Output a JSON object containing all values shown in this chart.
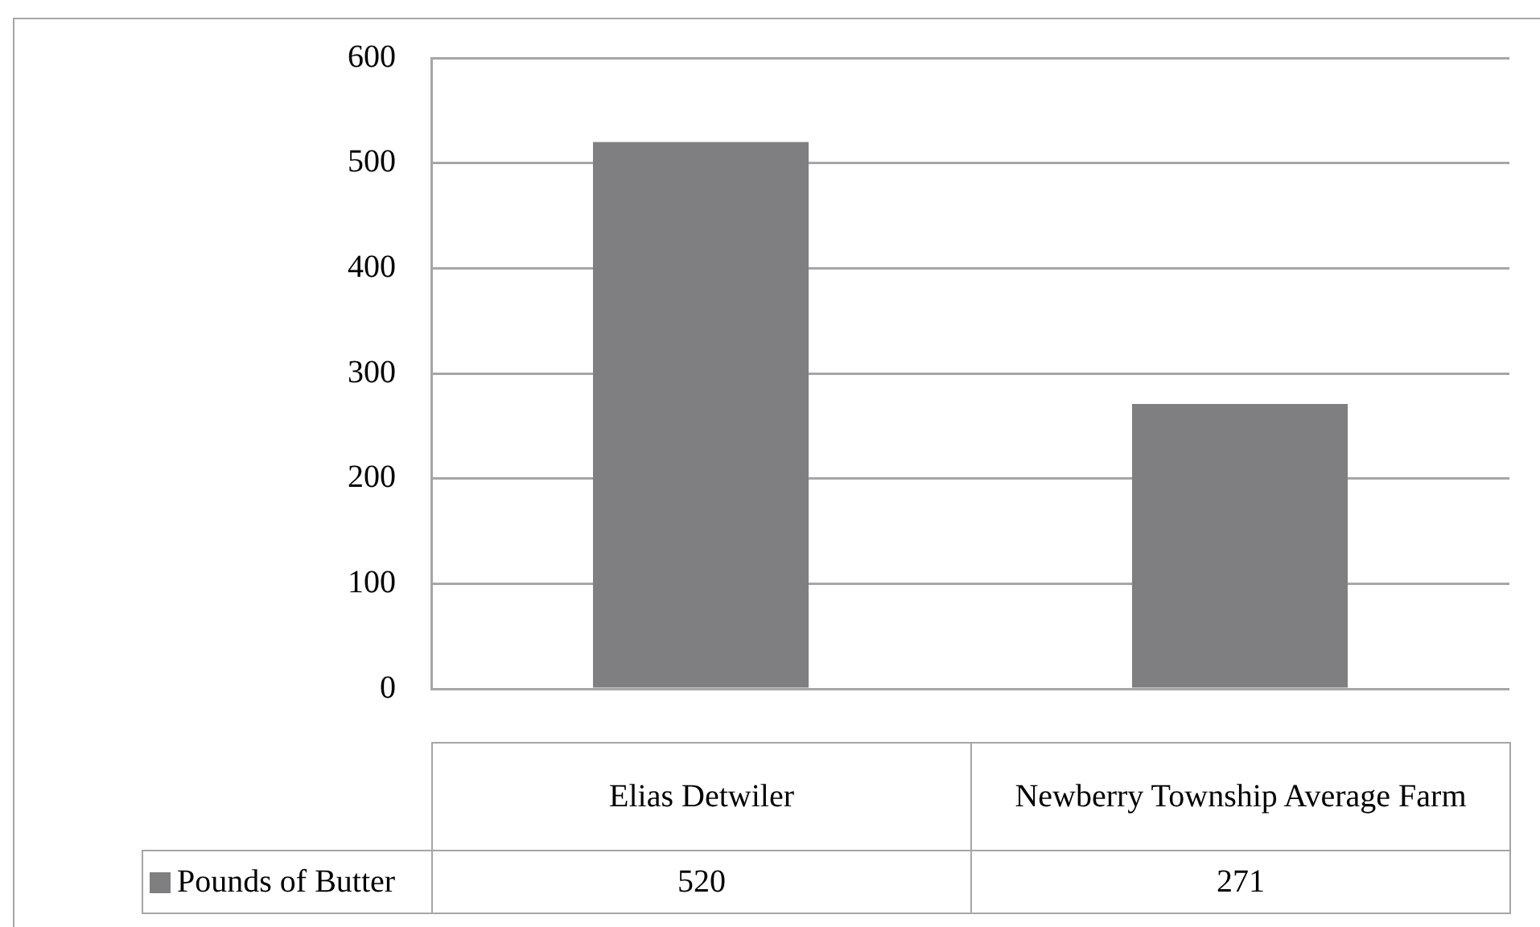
{
  "chart_data": {
    "type": "bar",
    "categories": [
      "Elias Detwiler",
      "Newberry Township Average Farm"
    ],
    "series": [
      {
        "name": "Pounds of Butter",
        "color": "#7f7f82",
        "values": [
          520,
          271
        ]
      }
    ],
    "ylim": [
      0,
      600
    ],
    "yticks": [
      0,
      100,
      200,
      300,
      400,
      500,
      600
    ],
    "grid": "y",
    "legend": "bottom",
    "data_labels": true
  }
}
